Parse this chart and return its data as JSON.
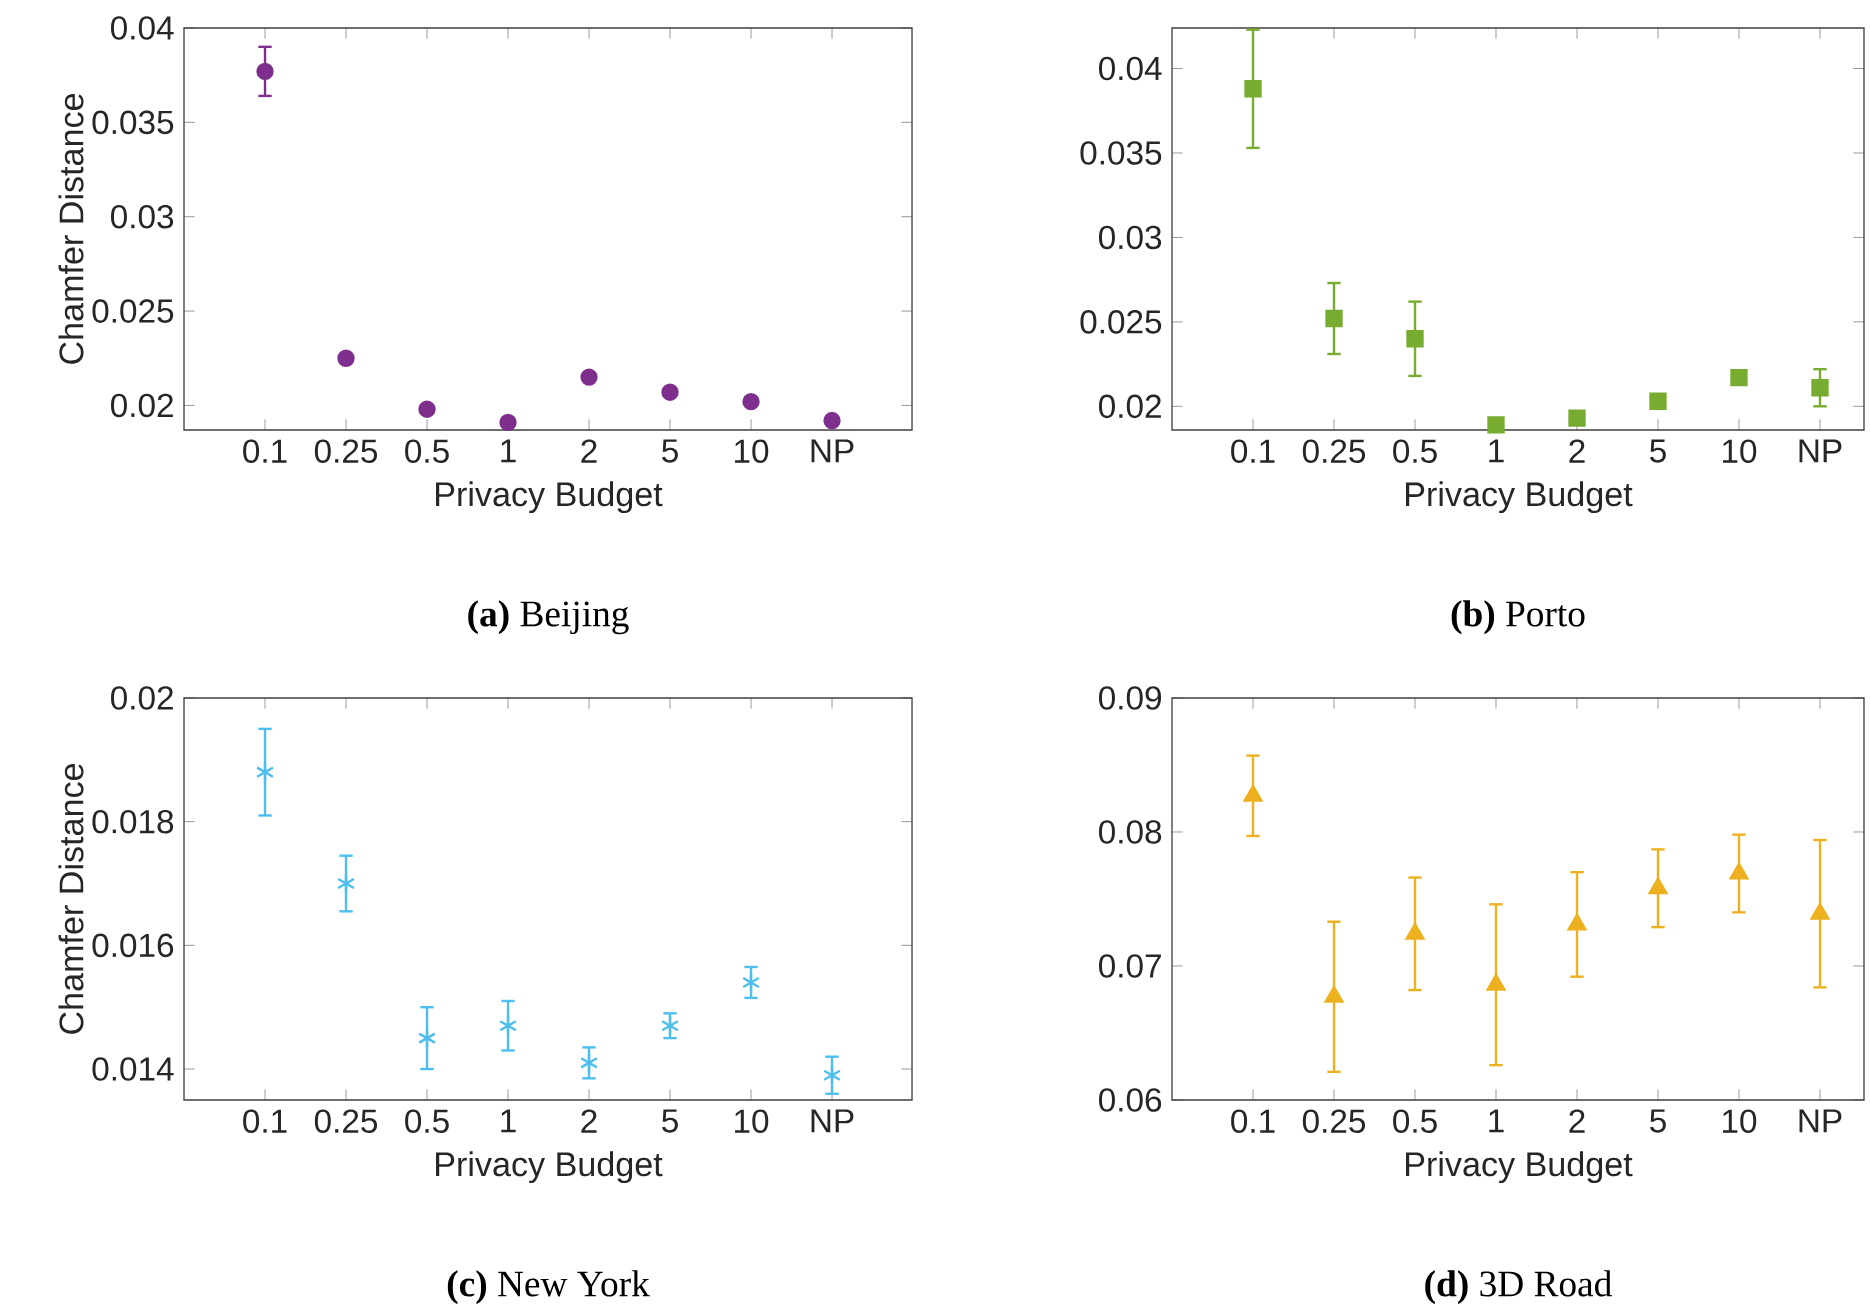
{
  "chart_data": [
    {
      "type": "scatter",
      "title": "**(a)** Beijing",
      "xlabel": "Privacy Budget",
      "ylabel": "Chamfer Distance",
      "marker": "circle",
      "categories": [
        "0.1",
        "0.25",
        "0.5",
        "1",
        "2",
        "5",
        "10",
        "NP"
      ],
      "ylim": [
        0.0187,
        0.04
      ],
      "yticks": [
        0.02,
        0.025,
        0.03,
        0.035,
        0.04
      ],
      "series": [
        {
          "color": "#7e2f8e",
          "values": [
            0.0377,
            0.0225,
            0.0198,
            0.0191,
            0.0215,
            0.0207,
            0.0202,
            0.0192
          ],
          "errors": [
            0.0013,
            null,
            null,
            null,
            null,
            null,
            null,
            null
          ]
        }
      ]
    },
    {
      "type": "scatter",
      "title": "**(b)** Porto",
      "xlabel": "Privacy Budget",
      "marker": "square",
      "categories": [
        "0.1",
        "0.25",
        "0.5",
        "1",
        "2",
        "5",
        "10",
        "NP"
      ],
      "ylim": [
        0.0186,
        0.0424
      ],
      "yticks": [
        0.02,
        0.025,
        0.03,
        0.035,
        0.04
      ],
      "series": [
        {
          "color": "#77ac30",
          "values": [
            0.0388,
            0.0252,
            0.024,
            0.0189,
            0.0193,
            0.0203,
            0.0217,
            0.0211
          ],
          "errors": [
            0.0035,
            0.0021,
            0.0022,
            null,
            null,
            null,
            null,
            0.0011
          ]
        }
      ]
    },
    {
      "type": "scatter",
      "title": "**(c)** New York",
      "xlabel": "Privacy Budget",
      "ylabel": "Chamfer Distance",
      "marker": "cross",
      "categories": [
        "0.1",
        "0.25",
        "0.5",
        "1",
        "2",
        "5",
        "10",
        "NP"
      ],
      "ylim": [
        0.0135,
        0.02
      ],
      "yticks": [
        0.014,
        0.016,
        0.018,
        0.02
      ],
      "series": [
        {
          "color": "#4dbeee",
          "values": [
            0.0188,
            0.017,
            0.0145,
            0.0147,
            0.0141,
            0.0147,
            0.0154,
            0.0139
          ],
          "errors": [
            0.0007,
            0.00045,
            0.0005,
            0.0004,
            0.00025,
            0.0002,
            0.00025,
            0.0003
          ]
        }
      ]
    },
    {
      "type": "scatter",
      "title": "**(d)** 3D Road",
      "xlabel": "Privacy Budget",
      "marker": "triangle",
      "categories": [
        "0.1",
        "0.25",
        "0.5",
        "1",
        "2",
        "5",
        "10",
        "NP"
      ],
      "ylim": [
        0.06,
        0.09
      ],
      "yticks": [
        0.06,
        0.07,
        0.08,
        0.09
      ],
      "series": [
        {
          "color": "#edb120",
          "values": [
            0.0827,
            0.0677,
            0.0724,
            0.0686,
            0.0731,
            0.0758,
            0.0769,
            0.0739
          ],
          "errors": [
            0.003,
            0.0056,
            0.0042,
            0.006,
            0.0039,
            0.0029,
            0.0029,
            0.0055
          ]
        }
      ]
    }
  ]
}
